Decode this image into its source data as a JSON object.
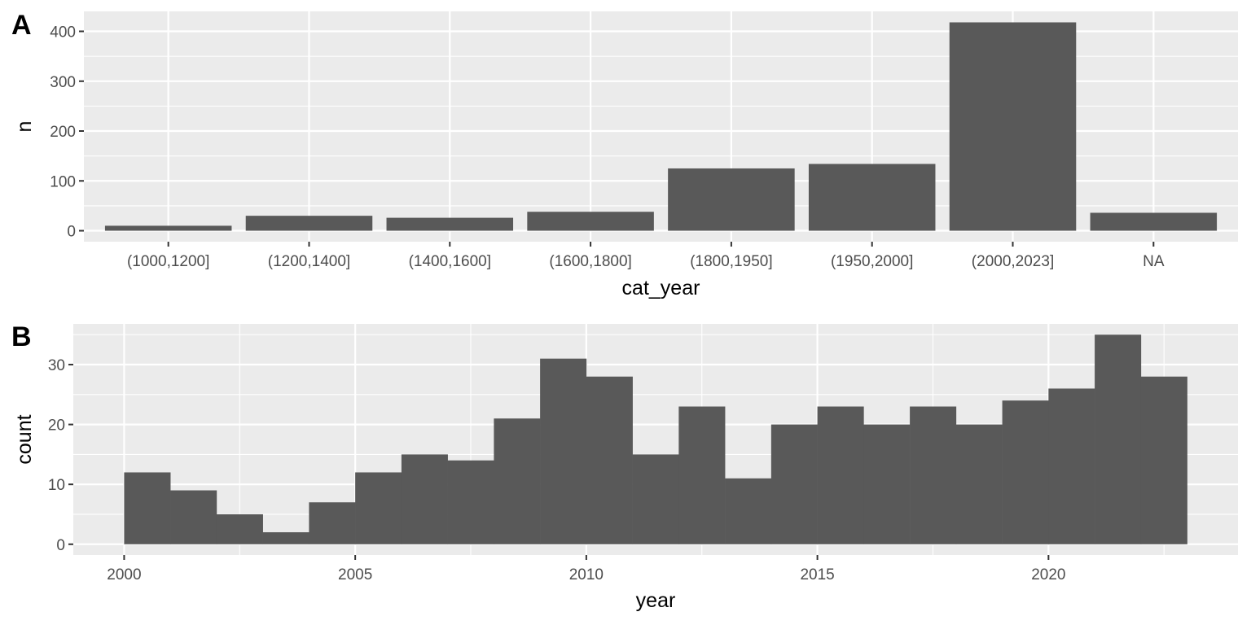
{
  "chart_data": [
    {
      "type": "bar",
      "panel_tag": "A",
      "categories": [
        "(1000,1200]",
        "(1200,1400]",
        "(1400,1600]",
        "(1600,1800]",
        "(1800,1950]",
        "(1950,2000]",
        "(2000,2023]",
        "NA"
      ],
      "values": [
        10,
        30,
        26,
        38,
        125,
        134,
        418,
        36
      ],
      "xlabel": "cat_year",
      "ylabel": "n",
      "ylim": [
        -22,
        440
      ],
      "yticks": [
        0,
        100,
        200,
        300,
        400
      ],
      "grid": true,
      "colors": {
        "bar": "#595959",
        "panel": "#ebebeb",
        "grid": "#ffffff"
      }
    },
    {
      "type": "bar",
      "subtype": "histogram",
      "panel_tag": "B",
      "bins": [
        {
          "x0": 2000.0,
          "x1": 2001.0,
          "count": 12
        },
        {
          "x0": 2001.0,
          "x1": 2002.0,
          "count": 9
        },
        {
          "x0": 2002.0,
          "x1": 2003.0,
          "count": 5
        },
        {
          "x0": 2003.0,
          "x1": 2004.0,
          "count": 2
        },
        {
          "x0": 2004.0,
          "x1": 2005.0,
          "count": 7
        },
        {
          "x0": 2005.0,
          "x1": 2006.0,
          "count": 12
        },
        {
          "x0": 2006.0,
          "x1": 2007.0,
          "count": 15
        },
        {
          "x0": 2007.0,
          "x1": 2008.0,
          "count": 14
        },
        {
          "x0": 2008.0,
          "x1": 2009.0,
          "count": 21
        },
        {
          "x0": 2009.0,
          "x1": 2010.0,
          "count": 31
        },
        {
          "x0": 2010.0,
          "x1": 2011.0,
          "count": 28
        },
        {
          "x0": 2011.0,
          "x1": 2012.0,
          "count": 15
        },
        {
          "x0": 2012.0,
          "x1": 2013.0,
          "count": 23
        },
        {
          "x0": 2013.0,
          "x1": 2014.0,
          "count": 11
        },
        {
          "x0": 2014.0,
          "x1": 2015.0,
          "count": 20
        },
        {
          "x0": 2015.0,
          "x1": 2016.0,
          "count": 23
        },
        {
          "x0": 2016.0,
          "x1": 2017.0,
          "count": 20
        },
        {
          "x0": 2017.0,
          "x1": 2018.0,
          "count": 23
        },
        {
          "x0": 2018.0,
          "x1": 2019.0,
          "count": 20
        },
        {
          "x0": 2019.0,
          "x1": 2020.0,
          "count": 24
        },
        {
          "x0": 2020.0,
          "x1": 2021.0,
          "count": 26
        },
        {
          "x0": 2021.0,
          "x1": 2022.0,
          "count": 35
        },
        {
          "x0": 2022.0,
          "x1": 2023.0,
          "count": 28
        }
      ],
      "xlabel": "year",
      "ylabel": "count",
      "xlim": [
        1998.9,
        2024.1
      ],
      "ylim": [
        -1.8,
        36.8
      ],
      "xticks": [
        2000,
        2005,
        2010,
        2015,
        2020
      ],
      "yticks": [
        0,
        10,
        20,
        30
      ],
      "grid": true,
      "colors": {
        "bar": "#595959",
        "panel": "#ebebeb",
        "grid": "#ffffff"
      }
    }
  ]
}
